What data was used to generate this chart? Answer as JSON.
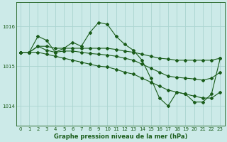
{
  "bg_color": "#cceae8",
  "grid_color": "#aad4d0",
  "line_color": "#1a5c1a",
  "title": "Graphe pression niveau de la mer (hPa)",
  "xlim": [
    -0.5,
    23.5
  ],
  "ylim": [
    1013.5,
    1016.6
  ],
  "yticks": [
    1014,
    1015,
    1016
  ],
  "xticks": [
    0,
    1,
    2,
    3,
    4,
    5,
    6,
    7,
    8,
    9,
    10,
    11,
    12,
    13,
    14,
    15,
    16,
    17,
    18,
    19,
    20,
    21,
    22,
    23
  ],
  "series": [
    {
      "x": [
        0,
        1,
        2,
        3,
        4,
        5,
        6,
        7,
        8,
        9,
        10,
        11,
        12,
        13,
        14,
        15,
        16,
        17,
        18,
        19,
        20,
        21,
        22,
        23
      ],
      "y": [
        1015.35,
        1015.35,
        1015.75,
        1015.65,
        1015.35,
        1015.45,
        1015.6,
        1015.5,
        1015.85,
        1016.1,
        1016.05,
        1015.75,
        1015.55,
        1015.4,
        1015.15,
        1014.7,
        1014.2,
        1014.0,
        1014.35,
        1014.3,
        1014.1,
        1014.1,
        1014.3,
        1015.2
      ]
    },
    {
      "x": [
        0,
        1,
        2,
        3,
        4,
        5,
        6,
        7,
        8,
        9,
        10,
        11,
        12,
        13,
        14,
        15,
        16,
        17,
        18,
        19,
        20,
        21,
        22,
        23
      ],
      "y": [
        1015.35,
        1015.35,
        1015.5,
        1015.5,
        1015.45,
        1015.45,
        1015.45,
        1015.45,
        1015.45,
        1015.45,
        1015.45,
        1015.42,
        1015.38,
        1015.35,
        1015.3,
        1015.25,
        1015.2,
        1015.18,
        1015.15,
        1015.15,
        1015.15,
        1015.15,
        1015.15,
        1015.2
      ]
    },
    {
      "x": [
        0,
        1,
        2,
        3,
        4,
        5,
        6,
        7,
        8,
        9,
        10,
        11,
        12,
        13,
        14,
        15,
        16,
        17,
        18,
        19,
        20,
        21,
        22,
        23
      ],
      "y": [
        1015.35,
        1015.35,
        1015.5,
        1015.4,
        1015.35,
        1015.38,
        1015.38,
        1015.35,
        1015.32,
        1015.3,
        1015.28,
        1015.25,
        1015.2,
        1015.15,
        1015.05,
        1014.95,
        1014.85,
        1014.75,
        1014.72,
        1014.7,
        1014.68,
        1014.65,
        1014.7,
        1014.85
      ]
    },
    {
      "x": [
        0,
        1,
        2,
        3,
        4,
        5,
        6,
        7,
        8,
        9,
        10,
        11,
        12,
        13,
        14,
        15,
        16,
        17,
        18,
        19,
        20,
        21,
        22,
        23
      ],
      "y": [
        1015.35,
        1015.35,
        1015.35,
        1015.3,
        1015.25,
        1015.2,
        1015.15,
        1015.1,
        1015.05,
        1015.0,
        1014.98,
        1014.92,
        1014.85,
        1014.8,
        1014.7,
        1014.6,
        1014.5,
        1014.4,
        1014.35,
        1014.3,
        1014.25,
        1014.2,
        1014.2,
        1014.35
      ]
    }
  ]
}
